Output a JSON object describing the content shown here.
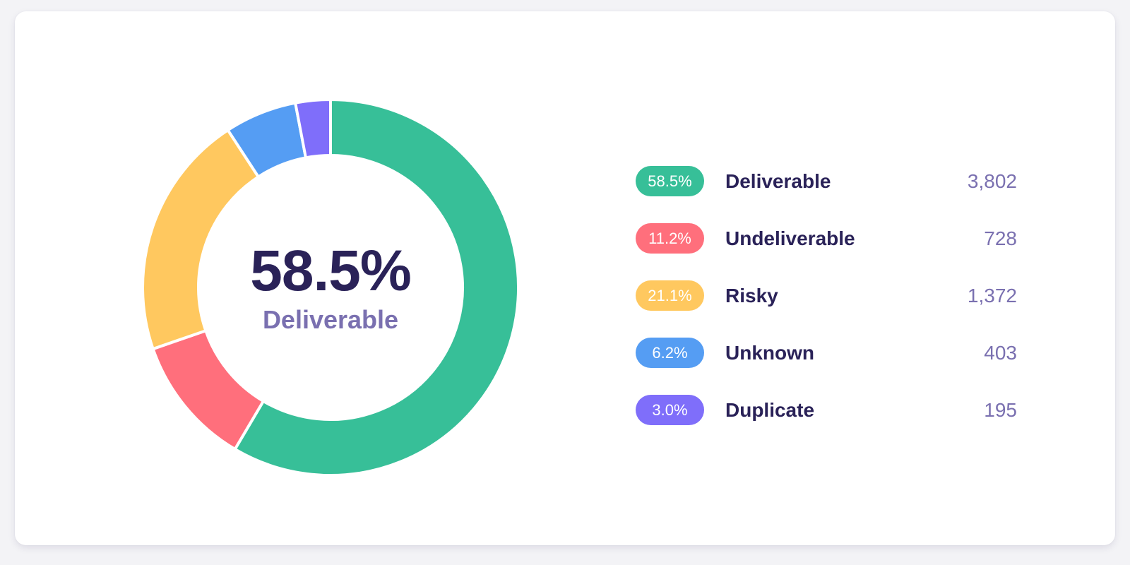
{
  "colors": {
    "deliverable": "#37bf98",
    "undeliverable": "#ff6f7c",
    "risky": "#ffc85f",
    "unknown": "#559df3",
    "duplicate": "#7f6efa",
    "text_dark": "#2a2258",
    "text_muted": "#7a70b0"
  },
  "center": {
    "value": "58.5%",
    "label": "Deliverable"
  },
  "legend": [
    {
      "percent": "58.5%",
      "name": "Deliverable",
      "count": "3,802",
      "color": "#37bf98"
    },
    {
      "percent": "11.2%",
      "name": "Undeliverable",
      "count": "728",
      "color": "#ff6f7c"
    },
    {
      "percent": "21.1%",
      "name": "Risky",
      "count": "1,372",
      "color": "#ffc85f"
    },
    {
      "percent": "6.2%",
      "name": "Unknown",
      "count": "403",
      "color": "#559df3"
    },
    {
      "percent": "3.0%",
      "name": "Duplicate",
      "count": "195",
      "color": "#7f6efa"
    }
  ],
  "chart_data": {
    "type": "pie",
    "title": "",
    "donut": true,
    "categories": [
      "Deliverable",
      "Undeliverable",
      "Risky",
      "Unknown",
      "Duplicate"
    ],
    "values": [
      3802,
      728,
      1372,
      403,
      195
    ],
    "percentages": [
      58.5,
      11.2,
      21.1,
      6.2,
      3.0
    ],
    "colors": [
      "#37bf98",
      "#ff6f7c",
      "#ffc85f",
      "#559df3",
      "#7f6efa"
    ],
    "start": "top",
    "direction": "clockwise",
    "legend_position": "right"
  }
}
